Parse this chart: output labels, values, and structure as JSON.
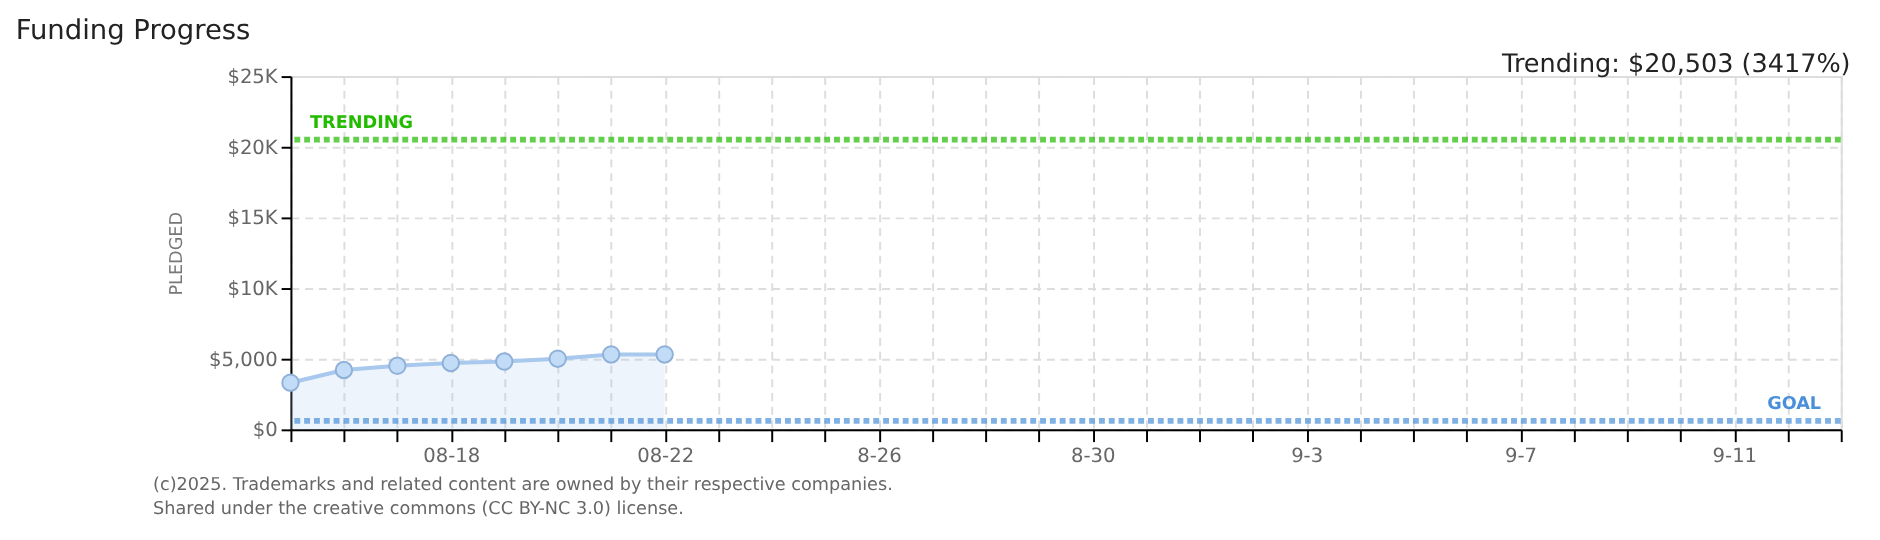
{
  "chart_data": {
    "type": "area",
    "title": "Funding Progress",
    "ylabel": "PLEDGED",
    "x": [
      "2025-08-15",
      "2025-08-16",
      "2025-08-17",
      "2025-08-18",
      "2025-08-19",
      "2025-08-20",
      "2025-08-21",
      "2025-08-22"
    ],
    "series": [
      {
        "color": "#a8c8ee",
        "values": [
          3300,
          4200,
          4500,
          4700,
          4800,
          5000,
          5300,
          5300
        ]
      }
    ],
    "xlim": [
      "2025-08-15",
      "2025-09-13"
    ],
    "xticks": [
      {
        "value": "2025-08-15",
        "label": null
      },
      {
        "value": "2025-08-16",
        "label": null
      },
      {
        "value": "2025-08-17",
        "label": null
      },
      {
        "value": "2025-08-18",
        "label": "08-18"
      },
      {
        "value": "2025-08-19",
        "label": null
      },
      {
        "value": "2025-08-20",
        "label": null
      },
      {
        "value": "2025-08-21",
        "label": null
      },
      {
        "value": "2025-08-22",
        "label": "08-22"
      },
      {
        "value": "2025-08-23",
        "label": null
      },
      {
        "value": "2025-08-24",
        "label": null
      },
      {
        "value": "2025-08-25",
        "label": null
      },
      {
        "value": "2025-08-26",
        "label": "8-26"
      },
      {
        "value": "2025-08-27",
        "label": null
      },
      {
        "value": "2025-08-28",
        "label": null
      },
      {
        "value": "2025-08-29",
        "label": null
      },
      {
        "value": "2025-08-30",
        "label": "8-30"
      },
      {
        "value": "2025-08-31",
        "label": null
      },
      {
        "value": "2025-09-01",
        "label": null
      },
      {
        "value": "2025-09-02",
        "label": null
      },
      {
        "value": "2025-09-03",
        "label": "9-3"
      },
      {
        "value": "2025-09-04",
        "label": null
      },
      {
        "value": "2025-09-05",
        "label": null
      },
      {
        "value": "2025-09-06",
        "label": null
      },
      {
        "value": "2025-09-07",
        "label": "9-7"
      },
      {
        "value": "2025-09-08",
        "label": null
      },
      {
        "value": "2025-09-09",
        "label": null
      },
      {
        "value": "2025-09-10",
        "label": null
      },
      {
        "value": "2025-09-11",
        "label": "9-11"
      },
      {
        "value": "2025-09-12",
        "label": null
      },
      {
        "value": "2025-09-13",
        "label": null
      }
    ],
    "ylim": [
      0,
      25000
    ],
    "yticks": [
      {
        "value": 0,
        "label": "$0"
      },
      {
        "value": 5000,
        "label": "$5,000"
      },
      {
        "value": 10000,
        "label": "$10K"
      },
      {
        "value": 15000,
        "label": "$15K"
      },
      {
        "value": 20000,
        "label": "$20K"
      },
      {
        "value": 25000,
        "label": "$25K"
      }
    ],
    "ref_lines": [
      {
        "axis": "y",
        "value": 20503,
        "label": "TRENDING",
        "color": "#22bb00",
        "line_style": "dotted"
      },
      {
        "axis": "y",
        "value": 600,
        "label": "GOAL",
        "color": "#4a90d9",
        "line_style": "dotted"
      }
    ],
    "annotations": [
      "Trending: $20,503 (3417%)",
      "(c)2025. Trademarks and related content are owned by their respective companies.",
      "Shared under the creative commons (CC BY-NC 3.0) license."
    ],
    "grid": true,
    "marker": "circle"
  }
}
